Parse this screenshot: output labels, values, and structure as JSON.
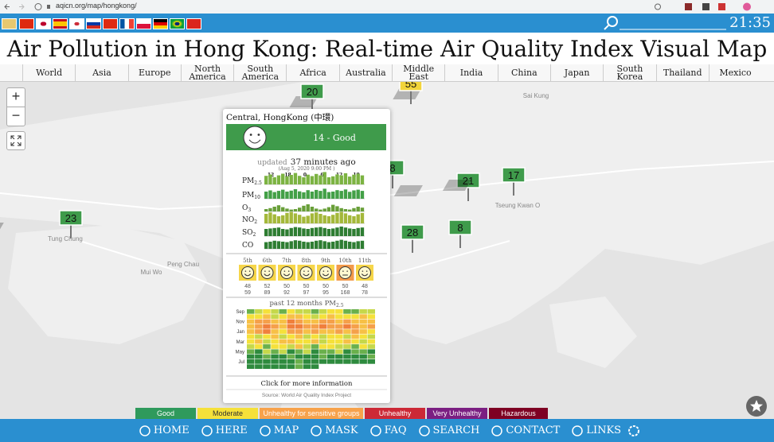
{
  "browser": {
    "url": "aqicn.org/map/hongkong/"
  },
  "header": {
    "time": "21:35",
    "title": "Air Pollution in Hong Kong: Real-time Air Quality Index Visual Map"
  },
  "nav": [
    "World",
    "Asia",
    "Europe",
    "North America",
    "South America",
    "Africa",
    "Australia",
    "Middle East",
    "India",
    "China",
    "Japan",
    "South Korea",
    "Thailand",
    "Mexico"
  ],
  "map": {
    "zoom_in": "+",
    "zoom_out": "−",
    "places": [
      "Sai Kung",
      "Tseung Kwan O",
      "Tung Chung",
      "Mui Wo",
      "Peng Chau"
    ],
    "markers": [
      {
        "value": 20,
        "color": "#3f9b4b"
      },
      {
        "value": 55,
        "color": "#f2d43a"
      },
      {
        "value": 8,
        "color": "#3f9b4b"
      },
      {
        "value": 23,
        "color": "#3f9b4b"
      },
      {
        "value": 21,
        "color": "#3f9b4b"
      },
      {
        "value": 17,
        "color": "#3f9b4b"
      },
      {
        "value": 28,
        "color": "#3f9b4b"
      },
      {
        "value": 8,
        "color": "#3f9b4b"
      }
    ]
  },
  "popup": {
    "station": "Central, HongKong (中環)",
    "aqi_label": "14 - Good",
    "status_color": "#3f9b4b",
    "updated": "updated",
    "updated_ago": "37 minutes ago",
    "updated_time": "(Aug 5, 2020 9:00 PM )",
    "hours": [
      12,
      18,
      0,
      6,
      12,
      18
    ],
    "pollutants": [
      {
        "name": "PM",
        "sub": "2.5",
        "color": "#7cb342",
        "values": [
          36,
          42,
          30,
          38,
          45,
          34,
          40,
          48,
          36,
          30,
          41,
          35,
          44,
          38,
          52,
          30,
          34,
          42,
          38,
          47,
          33,
          41,
          45,
          38
        ]
      },
      {
        "name": "PM",
        "sub": "10",
        "color": "#43a047",
        "values": [
          30,
          35,
          28,
          33,
          38,
          30,
          34,
          40,
          31,
          27,
          36,
          30,
          37,
          33,
          42,
          28,
          30,
          36,
          33,
          39,
          29,
          35,
          38,
          33
        ]
      },
      {
        "name": "O",
        "sub": "3",
        "color": "#689f38",
        "values": [
          10,
          14,
          20,
          26,
          18,
          12,
          8,
          10,
          16,
          24,
          30,
          20,
          12,
          8,
          12,
          18,
          28,
          22,
          14,
          10,
          8,
          14,
          20,
          16
        ]
      },
      {
        "name": "NO",
        "sub": "2",
        "color": "#a4b83a",
        "values": [
          40,
          46,
          38,
          30,
          34,
          44,
          48,
          42,
          36,
          28,
          32,
          42,
          46,
          40,
          34,
          30,
          36,
          44,
          48,
          42,
          34,
          30,
          38,
          44
        ]
      },
      {
        "name": "SO",
        "sub": "2",
        "color": "#2e7d32",
        "values": [
          30,
          32,
          34,
          36,
          30,
          28,
          34,
          38,
          36,
          32,
          30,
          34,
          36,
          38,
          34,
          30,
          32,
          36,
          40,
          36,
          32,
          30,
          34,
          36
        ]
      },
      {
        "name": "CO",
        "sub": null,
        "color": "#2e7d32",
        "values": [
          28,
          30,
          34,
          32,
          30,
          28,
          32,
          36,
          34,
          30,
          28,
          30,
          34,
          36,
          32,
          28,
          30,
          34,
          38,
          34,
          30,
          28,
          32,
          34
        ]
      }
    ],
    "forecast": [
      {
        "day": "5th",
        "min": 48,
        "max": 59,
        "color": "#f6d64a"
      },
      {
        "day": "6th",
        "min": 52,
        "max": 89,
        "color": "#f6d64a"
      },
      {
        "day": "7th",
        "min": 50,
        "max": 92,
        "color": "#f6d64a"
      },
      {
        "day": "8th",
        "min": 50,
        "max": 97,
        "color": "#f6d64a"
      },
      {
        "day": "9th",
        "min": 50,
        "max": 95,
        "color": "#f6d64a"
      },
      {
        "day": "10th",
        "min": 50,
        "max": 168,
        "color": "#f39a4a"
      },
      {
        "day": "11th",
        "min": 48,
        "max": 78,
        "color": "#f6d64a"
      }
    ],
    "history_title": "past 12 months PM",
    "history_sub": "2.5",
    "months": [
      "Sep",
      "Nov",
      "Jan",
      "Mar",
      "May",
      "Jul"
    ],
    "heatmap": [
      [
        45,
        60,
        80,
        55,
        48,
        70,
        65,
        52,
        40,
        58,
        75,
        68,
        50,
        45,
        62,
        55
      ],
      [
        70,
        85,
        90,
        60,
        75,
        95,
        88,
        72,
        65,
        80,
        92,
        78,
        70,
        85,
        90,
        75
      ],
      [
        95,
        110,
        120,
        88,
        100,
        130,
        115,
        98,
        105,
        125,
        110,
        95,
        120,
        105,
        100,
        90
      ],
      [
        105,
        125,
        140,
        110,
        95,
        130,
        150,
        120,
        115,
        135,
        125,
        110,
        140,
        120,
        100,
        115
      ],
      [
        90,
        115,
        130,
        100,
        85,
        120,
        110,
        95,
        125,
        105,
        90,
        115,
        100,
        120,
        95,
        85
      ],
      [
        70,
        55,
        85,
        95,
        60,
        75,
        90,
        65,
        80,
        55,
        70,
        85,
        60,
        95,
        75,
        60
      ],
      [
        80,
        95,
        60,
        75,
        90,
        105,
        70,
        85,
        100,
        65,
        80,
        75,
        95,
        70,
        60,
        85
      ],
      [
        60,
        75,
        50,
        85,
        70,
        55,
        90,
        65,
        45,
        70,
        80,
        55,
        65,
        50,
        75,
        60
      ],
      [
        45,
        35,
        55,
        40,
        60,
        30,
        50,
        65,
        35,
        45,
        40,
        55,
        30,
        50,
        45,
        35
      ],
      [
        30,
        25,
        40,
        35,
        20,
        45,
        30,
        25,
        35,
        40,
        28,
        22,
        30,
        35,
        25,
        40
      ],
      [
        25,
        30,
        20,
        35,
        28,
        22,
        40,
        30,
        25,
        20,
        35,
        30,
        22,
        28,
        25,
        30
      ],
      [
        30,
        25,
        35,
        28,
        22,
        30,
        40,
        25,
        30,
        null,
        null,
        null,
        null,
        null,
        null,
        null
      ]
    ],
    "more": "Click for more information",
    "source": "Source: World Air Quality Index Project"
  },
  "legend": [
    {
      "label": "Good",
      "color": "#2f9a5c",
      "text": "#ffffff"
    },
    {
      "label": "Moderate",
      "color": "#f5e13a",
      "text": "#333333"
    },
    {
      "label": "Unhealthy for sensitive groups",
      "color": "#f7a24b",
      "text": "#ffffff"
    },
    {
      "label": "Unhealthy",
      "color": "#cc2936",
      "text": "#ffffff"
    },
    {
      "label": "Very Unhealthy",
      "color": "#7b1f82",
      "text": "#ffffff"
    },
    {
      "label": "Hazardous",
      "color": "#7e0023",
      "text": "#ffffff"
    }
  ],
  "bottom_nav": [
    "HOME",
    "HERE",
    "MAP",
    "MASK",
    "FAQ",
    "SEARCH",
    "CONTACT",
    "LINKS"
  ]
}
